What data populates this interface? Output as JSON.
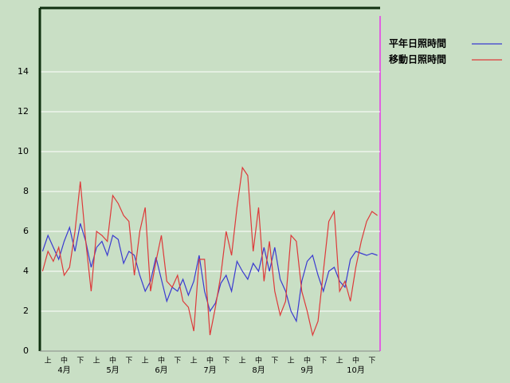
{
  "chart_data": {
    "type": "line",
    "categories": [
      null,
      "上",
      null,
      null,
      "中",
      null,
      null,
      "下",
      null,
      null,
      "上",
      null,
      null,
      "中",
      null,
      null,
      "下",
      null,
      null,
      "上",
      null,
      null,
      "中",
      null,
      null,
      "下",
      null,
      null,
      "上",
      null,
      null,
      "中",
      null,
      null,
      "下",
      null,
      null,
      "上",
      null,
      null,
      "中",
      null,
      null,
      "下",
      null,
      null,
      "上",
      null,
      null,
      "中",
      null,
      null,
      "下",
      null,
      null,
      "上",
      null,
      null,
      "中",
      null,
      null,
      "下",
      null
    ],
    "months": [
      "4月",
      "5月",
      "6月",
      "7月",
      "8月",
      "9月",
      "10月"
    ],
    "series": [
      {
        "name": "平年日照時間",
        "color": "#3a3ad0",
        "values": [
          5.0,
          5.8,
          5.2,
          4.6,
          5.5,
          6.2,
          5.0,
          6.4,
          5.5,
          4.2,
          5.2,
          5.5,
          4.8,
          5.8,
          5.6,
          4.4,
          5.0,
          4.8,
          3.8,
          3.0,
          3.5,
          4.7,
          3.6,
          2.5,
          3.2,
          3.0,
          3.6,
          2.8,
          3.5,
          4.8,
          3.0,
          2.0,
          2.4,
          3.4,
          3.8,
          3.0,
          4.5,
          4.0,
          3.6,
          4.4,
          4.0,
          5.2,
          4.0,
          5.2,
          3.6,
          3.0,
          2.0,
          1.5,
          3.5,
          4.5,
          4.8,
          3.8,
          3.0,
          4.0,
          4.2,
          3.5,
          3.2,
          4.6,
          5.0,
          4.9,
          4.8,
          4.9,
          4.8
        ]
      },
      {
        "name": "移動日照時間",
        "color": "#dd3a3a",
        "values": [
          4.0,
          5.0,
          4.5,
          5.2,
          3.8,
          4.2,
          6.0,
          8.5,
          5.5,
          3.0,
          6.0,
          5.8,
          5.5,
          7.8,
          7.4,
          6.8,
          6.5,
          3.8,
          6.0,
          7.2,
          3.0,
          4.5,
          5.8,
          3.5,
          3.2,
          3.8,
          2.5,
          2.2,
          1.0,
          4.6,
          4.6,
          0.8,
          2.2,
          3.8,
          6.0,
          4.8,
          7.2,
          9.2,
          8.8,
          5.0,
          7.2,
          3.5,
          5.5,
          3.0,
          1.8,
          2.5,
          5.8,
          5.5,
          3.0,
          2.0,
          0.8,
          1.5,
          4.0,
          6.5,
          7.0,
          3.0,
          3.5,
          2.5,
          4.2,
          5.5,
          6.5,
          7.0,
          6.8
        ]
      }
    ],
    "ylim": [
      0,
      17.2
    ],
    "yticks": [
      0,
      2,
      4,
      6,
      8,
      10,
      12,
      14
    ],
    "grid": true
  }
}
